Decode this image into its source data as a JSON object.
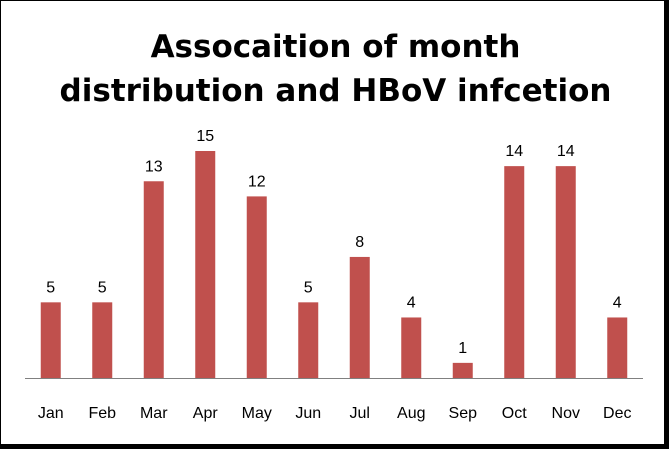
{
  "chart_data": {
    "type": "bar",
    "title_lines": [
      "Assocaition of month",
      "distribution and HBoV infcetion"
    ],
    "categories": [
      "Jan",
      "Feb",
      "Mar",
      "Apr",
      "May",
      "Jun",
      "Jul",
      "Aug",
      "Sep",
      "Oct",
      "Nov",
      "Dec"
    ],
    "values": [
      5,
      5,
      13,
      15,
      12,
      5,
      8,
      4,
      1,
      14,
      14,
      4
    ],
    "data_labels": [
      "5",
      "5",
      "13",
      "15",
      "12",
      "5",
      "8",
      "4",
      "1",
      "14",
      "14",
      "4"
    ],
    "xlabel": "",
    "ylabel": "",
    "ylim": [
      0,
      15
    ],
    "grid": false,
    "legend": "none",
    "bar_color": "#c0504d",
    "axis_color": "#808080"
  }
}
